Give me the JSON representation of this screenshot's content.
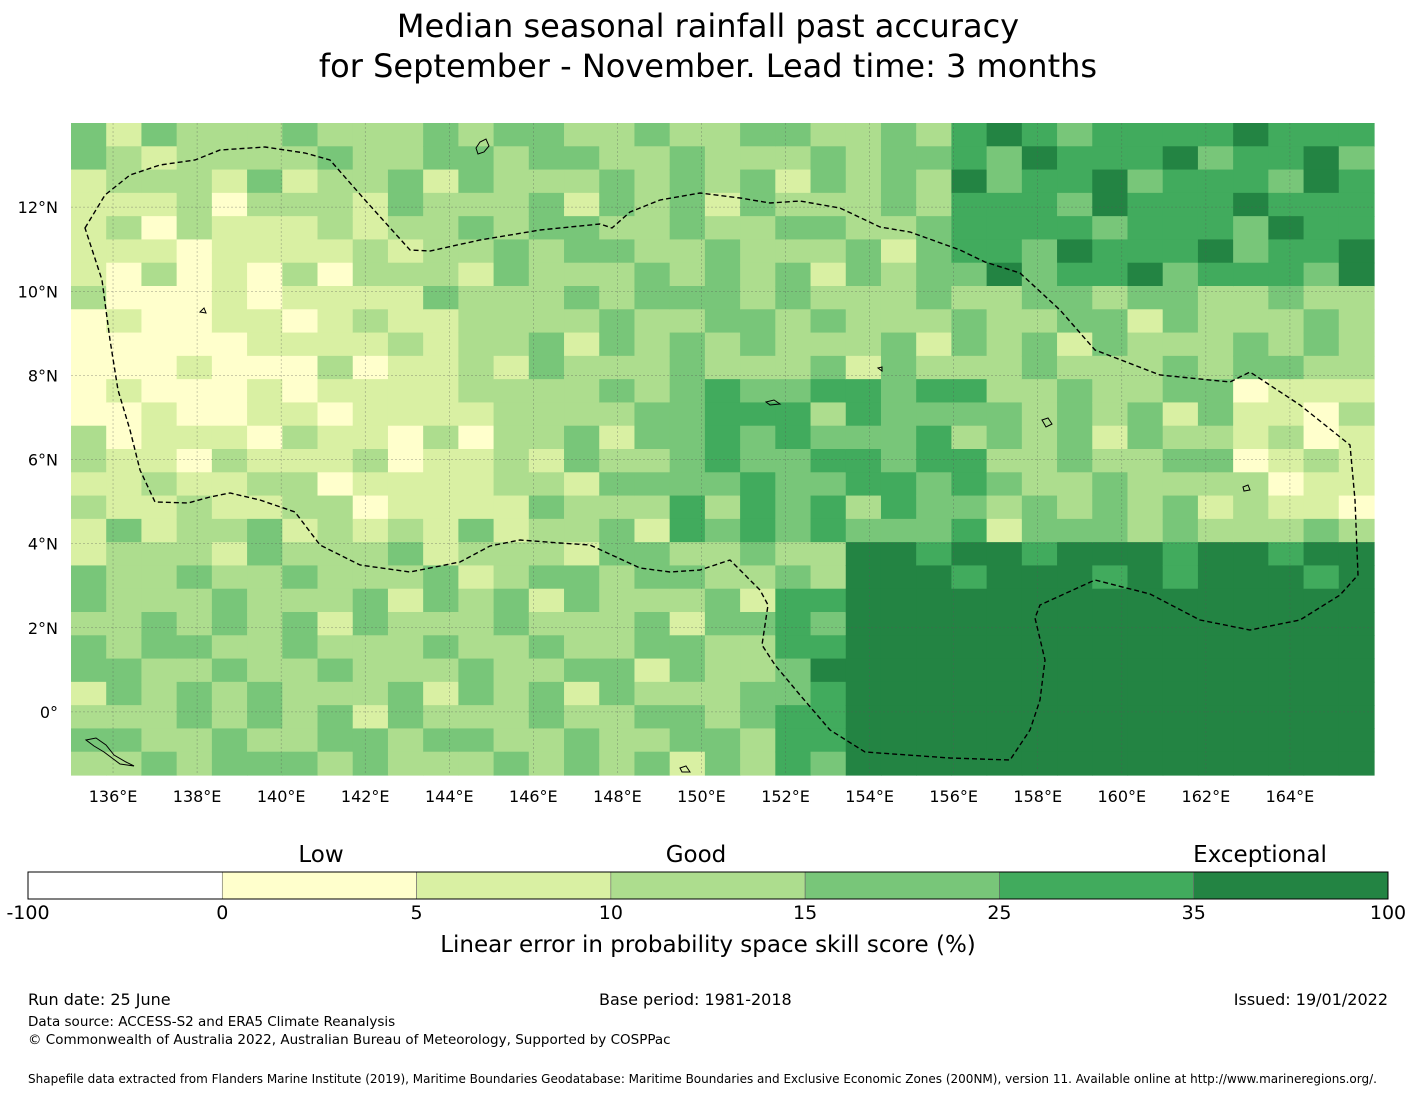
{
  "title": {
    "line1": "Median seasonal rainfall past accuracy",
    "line2": "for September - November. Lead time: 3 months"
  },
  "map": {
    "lon_range": [
      135,
      166
    ],
    "lat_range": [
      -1.5,
      14
    ],
    "lon_ticks": [
      "136°E",
      "138°E",
      "140°E",
      "142°E",
      "144°E",
      "146°E",
      "148°E",
      "150°E",
      "152°E",
      "154°E",
      "156°E",
      "158°E",
      "160°E",
      "162°E",
      "164°E"
    ],
    "lat_ticks": [
      "12°N",
      "10°N",
      "8°N",
      "6°N",
      "4°N",
      "2°N",
      "0°"
    ],
    "gridlines": true,
    "boundary_style": "dashed",
    "colors": [
      "#ffffff",
      "#ffffcc",
      "#d9f0a3",
      "#addd8e",
      "#78c679",
      "#41ab5d",
      "#238443"
    ]
  },
  "colorbar": {
    "labels": {
      "low": "Low",
      "good": "Good",
      "exceptional": "Exceptional"
    },
    "ticks": [
      "-100",
      "0",
      "5",
      "10",
      "15",
      "25",
      "35",
      "100"
    ],
    "title": "Linear error in probability space skill score (%)"
  },
  "footer": {
    "run_date": "Run date: 25 June",
    "base_period": "Base period: 1981-2018",
    "issued": "Issued: 19/01/2022",
    "data_source": "Data source: ACCESS-S2 and ERA5 Climate Reanalysis",
    "copyright": "© Commonwealth of Australia 2022, Australian Bureau of Meteorology, Supported by COSPPac",
    "shapefile": "Shapefile data extracted from Flanders Marine Institute (2019), Maritime Boundaries Geodatabase: Maritime Boundaries and Exclusive Economic Zones (200NM), version 11. Available online at http://www.marineregions.org/."
  }
}
